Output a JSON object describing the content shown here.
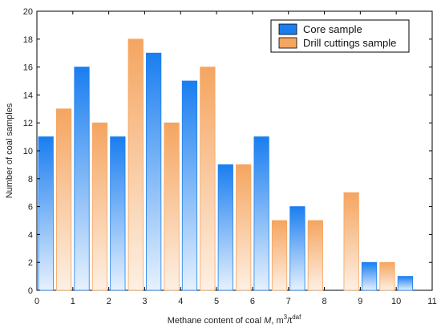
{
  "chart_data": {
    "type": "bar",
    "x_ticks": [
      0,
      1,
      2,
      3,
      4,
      5,
      6,
      7,
      8,
      9,
      10,
      11
    ],
    "y_ticks": [
      0,
      2,
      4,
      6,
      8,
      10,
      12,
      14,
      16,
      18,
      20
    ],
    "xlim": [
      0,
      11
    ],
    "ylim": [
      0,
      20
    ],
    "xlabel": {
      "prefix": "Methane content of coal ",
      "variable": "M",
      "unit_start": ", m",
      "unit_sup": "3",
      "unit_mid": "/t",
      "unit_sup2": "daf"
    },
    "ylabel": "Number of coal samples",
    "grid": false,
    "legend_position": "top-right",
    "series": [
      {
        "name": "Core sample",
        "color": "#1a7ef0",
        "x": [
          0.25,
          1.25,
          2.25,
          3.25,
          4.25,
          5.25,
          6.25,
          7.25,
          8.25,
          9.25,
          10.25
        ],
        "values": [
          11,
          16,
          11,
          17,
          15,
          9,
          11,
          6,
          0,
          2,
          1
        ]
      },
      {
        "name": "Drill cuttings sample",
        "color": "#f5a560",
        "x": [
          0.75,
          1.75,
          2.75,
          3.75,
          4.75,
          5.75,
          6.75,
          7.75,
          8.75,
          9.75,
          10.75
        ],
        "values": [
          13,
          12,
          18,
          12,
          16,
          9,
          5,
          5,
          7,
          2,
          0
        ]
      }
    ]
  }
}
